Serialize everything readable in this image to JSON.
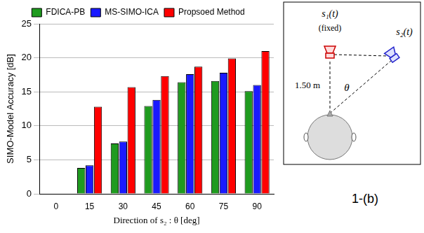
{
  "chart_data": {
    "type": "bar",
    "categories": [
      "0",
      "15",
      "30",
      "45",
      "60",
      "75",
      "90"
    ],
    "series": [
      {
        "name": "FDICA-PB",
        "color": "#1f9b1f",
        "values": [
          null,
          3.8,
          7.4,
          12.9,
          16.4,
          16.6,
          15.1
        ]
      },
      {
        "name": "MS-SIMO-ICA",
        "color": "#1a1aff",
        "values": [
          null,
          4.2,
          7.7,
          13.8,
          17.6,
          17.8,
          16.0
        ]
      },
      {
        "name": "Propsoed Method",
        "color": "#ff0000",
        "values": [
          null,
          12.8,
          15.7,
          17.3,
          18.7,
          19.9,
          21.0
        ]
      }
    ],
    "x_label": "Direction of s₂ : θ [deg]",
    "y_label": "SIMO-Model Accuracy [dB]",
    "ylim": [
      0,
      25
    ],
    "yticks": [
      0,
      5,
      10,
      15,
      20,
      25
    ],
    "grid": true,
    "legend": "top"
  },
  "diagram": {
    "source_1": "s₁(t)",
    "source_1_note": "(fixed)",
    "source_2": "s₂(t)",
    "distance": "1.50 m",
    "angle": "θ",
    "panel": "1-(b)"
  }
}
